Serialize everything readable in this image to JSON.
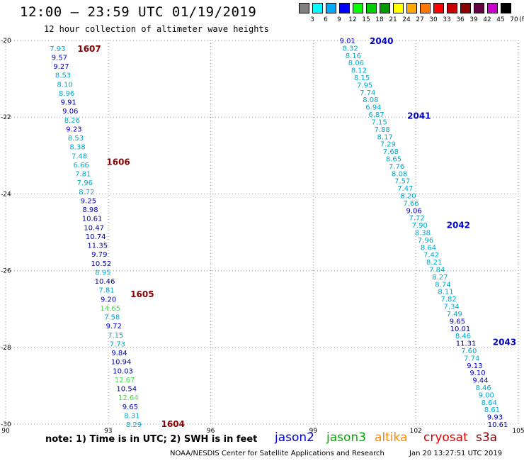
{
  "header": {
    "title": "12:00 – 23:59 UTC 01/19/2019",
    "subtitle": "12 hour collection of altimeter wave heights"
  },
  "colors": {
    "jason2": "#0000cc",
    "jason3": "#00aa00",
    "altika": "#ff8800",
    "cryosat": "#dd0000",
    "s3a": "#880000",
    "light": "#00aacc",
    "navy": "#000099",
    "lime": "#44dd44",
    "pass": "#880000",
    "grid": "#888888"
  },
  "legend": {
    "unit": "(ft)",
    "swatches": [
      "#808080",
      "#00ffff",
      "#00aaff",
      "#0000ff",
      "#00ff00",
      "#00cc00",
      "#009900",
      "#ffff00",
      "#ffaa00",
      "#ff7700",
      "#ff0000",
      "#cc0000",
      "#880000",
      "#660044",
      "#cc00cc",
      "#000000"
    ],
    "labels": [
      "3",
      "6",
      "9",
      "12",
      "15",
      "18",
      "21",
      "24",
      "27",
      "30",
      "33",
      "36",
      "39",
      "42",
      "45",
      "70"
    ]
  },
  "axes": {
    "x_ticks": [
      "90",
      "93",
      "96",
      "99",
      "102",
      "105"
    ],
    "x_values": [
      90,
      93,
      96,
      99,
      102,
      105
    ],
    "y_ticks": [
      "-20",
      "-22",
      "-24",
      "-26",
      "-28",
      "-30"
    ],
    "y_values": [
      -20,
      -22,
      -24,
      -26,
      -28,
      -30
    ],
    "xlim": [
      90,
      105
    ],
    "ylim": [
      -30,
      -20
    ]
  },
  "tracks": [
    {
      "side": "left",
      "start": [
        91.52,
        -20.2
      ],
      "end": [
        93.75,
        -30.0
      ],
      "values": [
        {
          "v": "7.93",
          "c": "light"
        },
        {
          "v": "9.57",
          "c": "jason2"
        },
        {
          "v": "9.27",
          "c": "jason2"
        },
        {
          "v": "8.53",
          "c": "light"
        },
        {
          "v": "8.10",
          "c": "light"
        },
        {
          "v": "8.96",
          "c": "light"
        },
        {
          "v": "9.91",
          "c": "navy"
        },
        {
          "v": "9.06",
          "c": "jason2"
        },
        {
          "v": "8.26",
          "c": "light"
        },
        {
          "v": "9.23",
          "c": "jason2"
        },
        {
          "v": "8.53",
          "c": "light"
        },
        {
          "v": "8.38",
          "c": "light"
        },
        {
          "v": "7.48",
          "c": "light"
        },
        {
          "v": "6.66",
          "c": "light"
        },
        {
          "v": "7.81",
          "c": "light"
        },
        {
          "v": "7.96",
          "c": "light"
        },
        {
          "v": "8.72",
          "c": "light"
        },
        {
          "v": "9.25",
          "c": "jason2"
        },
        {
          "v": "8.98",
          "c": "jason2"
        },
        {
          "v": "10.61",
          "c": "navy"
        },
        {
          "v": "10.47",
          "c": "navy"
        },
        {
          "v": "10.74",
          "c": "navy"
        },
        {
          "v": "11.35",
          "c": "navy"
        },
        {
          "v": "9.79",
          "c": "jason2"
        },
        {
          "v": "10.52",
          "c": "navy"
        },
        {
          "v": "8.95",
          "c": "light"
        },
        {
          "v": "10.46",
          "c": "navy"
        },
        {
          "v": "7.81",
          "c": "light"
        },
        {
          "v": "9.20",
          "c": "jason2"
        },
        {
          "v": "14.65",
          "c": "lime"
        },
        {
          "v": "7.58",
          "c": "light"
        },
        {
          "v": "9.72",
          "c": "jason2"
        },
        {
          "v": "7.15",
          "c": "light"
        },
        {
          "v": "7.73",
          "c": "light"
        },
        {
          "v": "9.84",
          "c": "jason2"
        },
        {
          "v": "10.94",
          "c": "navy"
        },
        {
          "v": "10.03",
          "c": "navy"
        },
        {
          "v": "12.67",
          "c": "lime"
        },
        {
          "v": "10.54",
          "c": "navy"
        },
        {
          "v": "12.64",
          "c": "lime"
        },
        {
          "v": "9.65",
          "c": "jason2"
        },
        {
          "v": "8.31",
          "c": "light"
        },
        {
          "v": "8.29",
          "c": "light"
        }
      ]
    },
    {
      "side": "right",
      "start": [
        100.0,
        -20.0
      ],
      "end": [
        104.4,
        -30.0
      ],
      "values": [
        {
          "v": "9.01",
          "c": "jason2"
        },
        {
          "v": "8.32",
          "c": "light"
        },
        {
          "v": "8.16",
          "c": "light"
        },
        {
          "v": "8.06",
          "c": "light"
        },
        {
          "v": "8.12",
          "c": "light"
        },
        {
          "v": "8.15",
          "c": "light"
        },
        {
          "v": "7.95",
          "c": "light"
        },
        {
          "v": "7.74",
          "c": "light"
        },
        {
          "v": "8.08",
          "c": "light"
        },
        {
          "v": "6.94",
          "c": "light"
        },
        {
          "v": "6.87",
          "c": "light"
        },
        {
          "v": "7.15",
          "c": "light"
        },
        {
          "v": "7.88",
          "c": "light"
        },
        {
          "v": "8.17",
          "c": "light"
        },
        {
          "v": "7.29",
          "c": "light"
        },
        {
          "v": "7.68",
          "c": "light"
        },
        {
          "v": "8.65",
          "c": "light"
        },
        {
          "v": "7.76",
          "c": "light"
        },
        {
          "v": "8.08",
          "c": "light"
        },
        {
          "v": "7.57",
          "c": "light"
        },
        {
          "v": "7.47",
          "c": "light"
        },
        {
          "v": "8.20",
          "c": "light"
        },
        {
          "v": "7.66",
          "c": "light"
        },
        {
          "v": "9.06",
          "c": "jason2"
        },
        {
          "v": "7.72",
          "c": "light"
        },
        {
          "v": "7.90",
          "c": "light"
        },
        {
          "v": "8.38",
          "c": "light"
        },
        {
          "v": "7.96",
          "c": "light"
        },
        {
          "v": "8.64",
          "c": "light"
        },
        {
          "v": "7.42",
          "c": "light"
        },
        {
          "v": "8.21",
          "c": "light"
        },
        {
          "v": "7.84",
          "c": "light"
        },
        {
          "v": "8.27",
          "c": "light"
        },
        {
          "v": "8.74",
          "c": "light"
        },
        {
          "v": "8.11",
          "c": "light"
        },
        {
          "v": "7.82",
          "c": "light"
        },
        {
          "v": "7.34",
          "c": "light"
        },
        {
          "v": "7.49",
          "c": "light"
        },
        {
          "v": "9.65",
          "c": "jason2"
        },
        {
          "v": "10.01",
          "c": "navy"
        },
        {
          "v": "8.46",
          "c": "light"
        },
        {
          "v": "11.31",
          "c": "navy"
        },
        {
          "v": "7.60",
          "c": "light"
        },
        {
          "v": "7.74",
          "c": "light"
        },
        {
          "v": "9.13",
          "c": "jason2"
        },
        {
          "v": "9.10",
          "c": "jason2"
        },
        {
          "v": "9.44",
          "c": "jason2"
        },
        {
          "v": "8.46",
          "c": "light"
        },
        {
          "v": "9.00",
          "c": "light"
        },
        {
          "v": "8.64",
          "c": "light"
        },
        {
          "v": "8.61",
          "c": "light"
        },
        {
          "v": "9.93",
          "c": "jason2"
        },
        {
          "v": "10.61",
          "c": "navy"
        }
      ]
    }
  ],
  "pass_labels": [
    {
      "text": "1607",
      "lon": 92.1,
      "lat": -20.2,
      "c": "pass"
    },
    {
      "text": "1606",
      "lon": 92.95,
      "lat": -23.15,
      "c": "pass"
    },
    {
      "text": "1605",
      "lon": 93.65,
      "lat": -26.6,
      "c": "pass"
    },
    {
      "text": "1604",
      "lon": 94.55,
      "lat": -29.98,
      "c": "pass"
    },
    {
      "text": "2040",
      "lon": 100.65,
      "lat": -20.0,
      "c": "jason2"
    },
    {
      "text": "2041",
      "lon": 101.75,
      "lat": -21.95,
      "c": "jason2"
    },
    {
      "text": "2042",
      "lon": 102.9,
      "lat": -24.8,
      "c": "jason2"
    },
    {
      "text": "2043",
      "lon": 104.25,
      "lat": -27.85,
      "c": "jason2"
    }
  ],
  "footer": {
    "note": "note: 1) Time is in UTC; 2) SWH is in feet",
    "satellites": [
      {
        "name": "jason2",
        "color": "#0000cc"
      },
      {
        "name": "jason3",
        "color": "#00aa00"
      },
      {
        "name": "altika",
        "color": "#ff8800"
      },
      {
        "name": "cryosat",
        "color": "#dd0000"
      },
      {
        "name": "s3a",
        "color": "#880000"
      }
    ],
    "credit": "NOAA/NESDIS Center for Satellite Applications and Research",
    "timestamp": "Jan 20 13:27:51 UTC 2019"
  }
}
